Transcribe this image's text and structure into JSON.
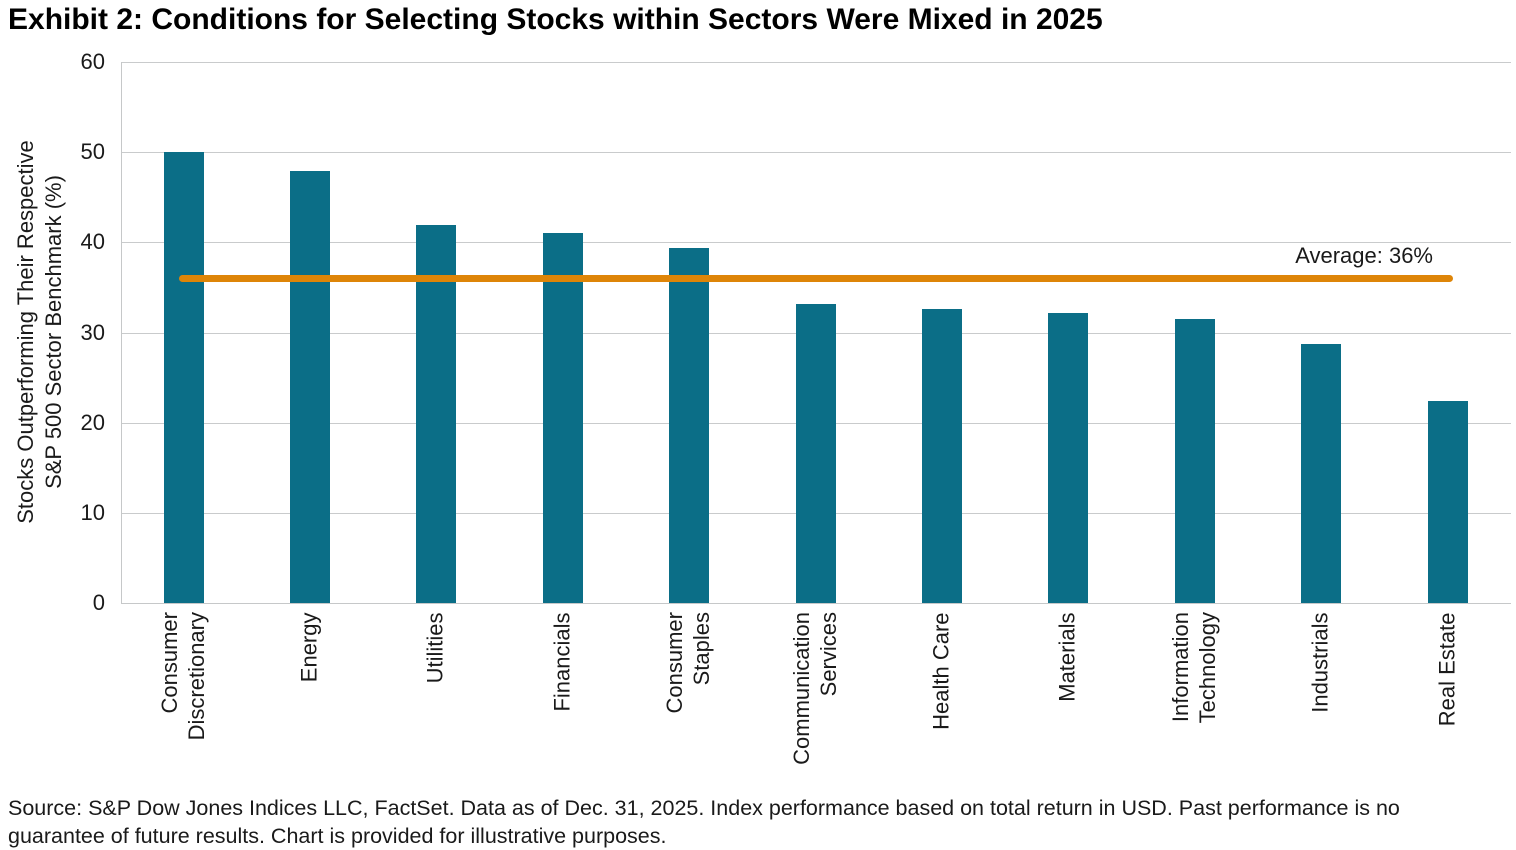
{
  "title": "Exhibit 2: Conditions for Selecting Stocks within Sectors Were Mixed in 2025",
  "source_note": "Source: S&P Dow Jones Indices LLC, FactSet. Data as of Dec. 31, 2025. Index performance based on total return in USD. Past performance is no guarantee of future results. Chart is provided for illustrative purposes.",
  "chart_data": {
    "type": "bar",
    "title": "Exhibit 2: Conditions for Selecting Stocks within Sectors Were Mixed in 2025",
    "xlabel": "",
    "ylabel": "Stocks Outperforming Their Respective\nS&P 500 Sector Benchmark (%)",
    "ylim": [
      0,
      60
    ],
    "yticks": [
      0,
      10,
      20,
      30,
      40,
      50,
      60
    ],
    "grid": true,
    "legend_position": "none",
    "categories": [
      "Consumer\nDiscretionary",
      "Energy",
      "Utilities",
      "Financials",
      "Consumer\nStaples",
      "Communication\nServices",
      "Health Care",
      "Materials",
      "Information\nTechnology",
      "Industrials",
      "Real Estate"
    ],
    "values": [
      50,
      47.9,
      41.9,
      41,
      39.4,
      33.2,
      32.6,
      32.2,
      31.5,
      28.7,
      22.4
    ],
    "average_line": {
      "value": 36,
      "label": "Average: 36%"
    },
    "colors": {
      "bar": "#0b6e87",
      "average_line": "#de8508",
      "gridline": "#c9cbcc",
      "axis": "#c6c8c9",
      "text": "#1a1a1a"
    }
  }
}
